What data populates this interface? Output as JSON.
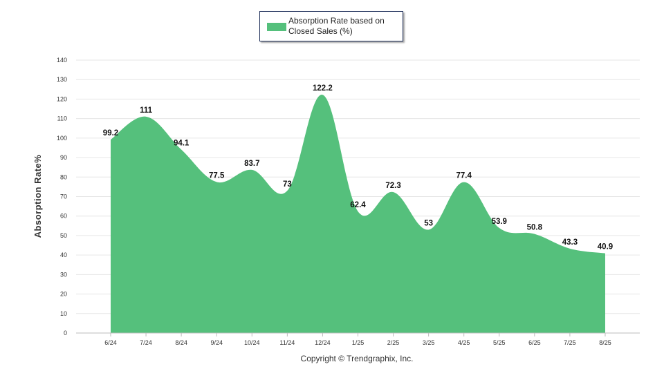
{
  "chart_data": {
    "type": "area",
    "categories": [
      "6/24",
      "7/24",
      "8/24",
      "9/24",
      "10/24",
      "11/24",
      "12/24",
      "1/25",
      "2/25",
      "3/25",
      "4/25",
      "5/25",
      "6/25",
      "7/25",
      "8/25"
    ],
    "series": [
      {
        "name": "Absorption Rate based on Closed Sales (%)",
        "values": [
          99.2,
          111,
          94.1,
          77.5,
          83.7,
          73,
          122.2,
          62.4,
          72.3,
          53,
          77.4,
          53.9,
          50.8,
          43.3,
          40.9
        ],
        "color": "#55c07c"
      }
    ],
    "data_labels": [
      "99.2",
      "111",
      "94.1",
      "77.5",
      "83.7",
      "73",
      "122.2",
      "62.4",
      "72.3",
      "53",
      "77.4",
      "53.9",
      "50.8",
      "43.3",
      "40.9"
    ],
    "ylabel": "Absorption Rate%",
    "xlabel": "",
    "ylim": [
      0,
      140
    ],
    "yticks": [
      0,
      10,
      20,
      30,
      40,
      50,
      60,
      70,
      80,
      90,
      100,
      110,
      120,
      130,
      140
    ],
    "grid": true,
    "legend_position": "top-center"
  },
  "legend": {
    "label": "Absorption Rate based on Closed Sales (%)"
  },
  "credit": "Copyright © Trendgraphix, Inc."
}
